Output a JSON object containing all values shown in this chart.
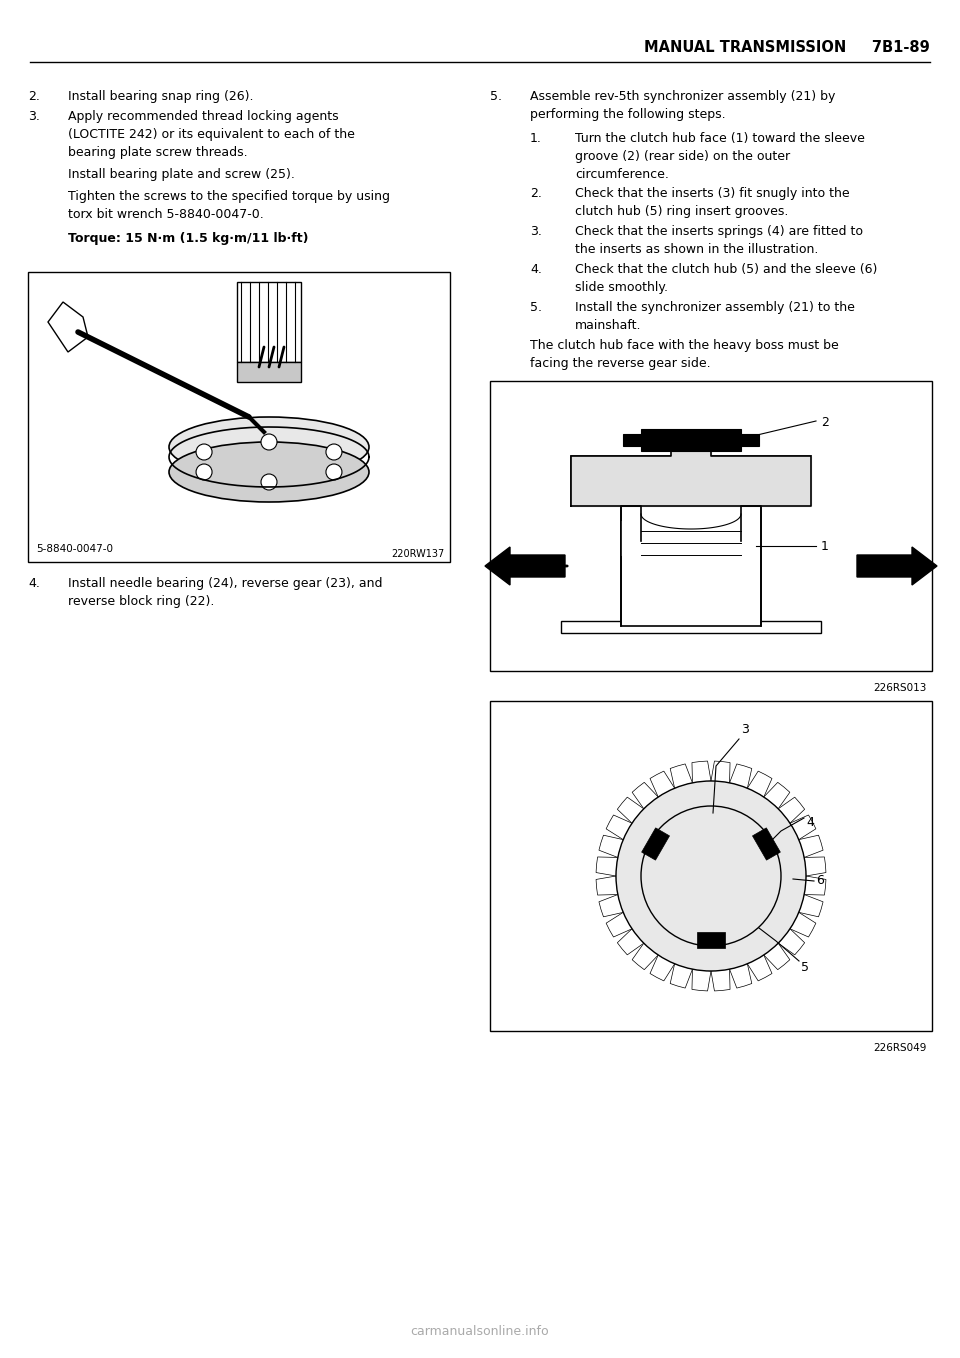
{
  "bg_color": "#ffffff",
  "header_text": "MANUAL TRANSMISSION     7B1-89",
  "body_fontsize": 9.0,
  "header_fontsize": 10.5,
  "footer_text": "carmanualsonline.info",
  "left_text_items": [
    {
      "type": "num",
      "num": "2.",
      "text": "Install bearing snap ring (26)."
    },
    {
      "type": "num",
      "num": "3.",
      "text": "Apply recommended thread locking agents\n(LOCTITE 242) or its equivalent to each of the\nbearing plate screw threads."
    },
    {
      "type": "plain",
      "text": "Install bearing plate and screw (25)."
    },
    {
      "type": "plain",
      "text": "Tighten the screws to the specified torque by using\ntorx bit wrench 5-8840-0047-0."
    },
    {
      "type": "bold",
      "text": "Torque: 15 N·m (1.5 kg·m/11 lb·ft)"
    },
    {
      "type": "num",
      "num": "4.",
      "text": "Install needle bearing (24), reverse gear (23), and\nreverse block ring (22)."
    }
  ],
  "right_text_items": [
    {
      "type": "num",
      "num": "5.",
      "text": "Assemble rev-5th synchronizer assembly (21) by\nperforming the following steps."
    },
    {
      "type": "sub",
      "num": "1.",
      "text": "Turn the clutch hub face (1) toward the sleeve\ngroove (2) (rear side) on the outer\ncircumference."
    },
    {
      "type": "sub",
      "num": "2.",
      "text": "Check that the inserts (3) fit snugly into the\nclutch hub (5) ring insert grooves."
    },
    {
      "type": "sub",
      "num": "3.",
      "text": "Check that the inserts springs (4) are fitted to\nthe inserts as shown in the illustration."
    },
    {
      "type": "sub",
      "num": "4.",
      "text": "Check that the clutch hub (5) and the sleeve (6)\nslide smoothly."
    },
    {
      "type": "sub",
      "num": "5.",
      "text": "Install the synchronizer assembly (21) to the\nmainshaft."
    },
    {
      "type": "plain2",
      "text": "The clutch hub face with the heavy boss must be\nfacing the reverse gear side."
    }
  ]
}
